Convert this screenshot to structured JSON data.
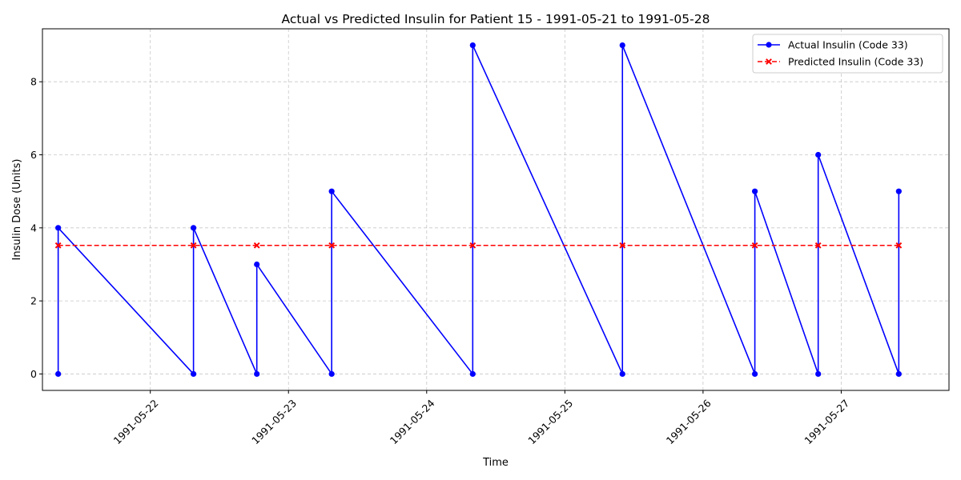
{
  "chart_data": {
    "type": "line",
    "title": "Actual vs Predicted Insulin for Patient 15 - 1991-05-21 to 1991-05-28",
    "xlabel": "Time",
    "ylabel": "Insulin Dose (Units)",
    "x_ticks": [
      "1991-05-22",
      "1991-05-23",
      "1991-05-24",
      "1991-05-25",
      "1991-05-26",
      "1991-05-27"
    ],
    "y_ticks": [
      "0",
      "2",
      "4",
      "6",
      "8"
    ],
    "xlim": [
      "1991-05-21T05:16",
      "1991-05-27T18:43"
    ],
    "ylim": [
      -0.45,
      9.45
    ],
    "grid": true,
    "legend_position": "top-right",
    "series": [
      {
        "name": "Actual Insulin (Code 33)",
        "color": "#0000ff",
        "style": "solid",
        "marker": "circle",
        "points": [
          [
            "1991-05-21T08:00",
            0
          ],
          [
            "1991-05-21T08:00",
            4
          ],
          [
            "1991-05-22T07:30",
            0
          ],
          [
            "1991-05-22T07:30",
            4
          ],
          [
            "1991-05-22T18:30",
            0
          ],
          [
            "1991-05-22T18:30",
            3
          ],
          [
            "1991-05-23T07:30",
            0
          ],
          [
            "1991-05-23T07:30",
            5
          ],
          [
            "1991-05-24T08:00",
            0
          ],
          [
            "1991-05-24T08:00",
            9
          ],
          [
            "1991-05-25T10:00",
            0
          ],
          [
            "1991-05-25T10:00",
            9
          ],
          [
            "1991-05-26T09:00",
            0
          ],
          [
            "1991-05-26T09:00",
            5
          ],
          [
            "1991-05-26T20:00",
            0
          ],
          [
            "1991-05-26T20:00",
            6
          ],
          [
            "1991-05-27T10:00",
            0
          ],
          [
            "1991-05-27T10:00",
            5
          ]
        ]
      },
      {
        "name": "Predicted Insulin (Code 33)",
        "color": "#ff0000",
        "style": "dashed",
        "marker": "x",
        "points": [
          [
            "1991-05-21T08:00",
            3.52
          ],
          [
            "1991-05-22T07:30",
            3.52
          ],
          [
            "1991-05-22T18:30",
            3.52
          ],
          [
            "1991-05-23T07:30",
            3.52
          ],
          [
            "1991-05-24T08:00",
            3.52
          ],
          [
            "1991-05-25T10:00",
            3.52
          ],
          [
            "1991-05-26T09:00",
            3.52
          ],
          [
            "1991-05-26T20:00",
            3.52
          ],
          [
            "1991-05-27T10:00",
            3.52
          ]
        ]
      }
    ]
  }
}
